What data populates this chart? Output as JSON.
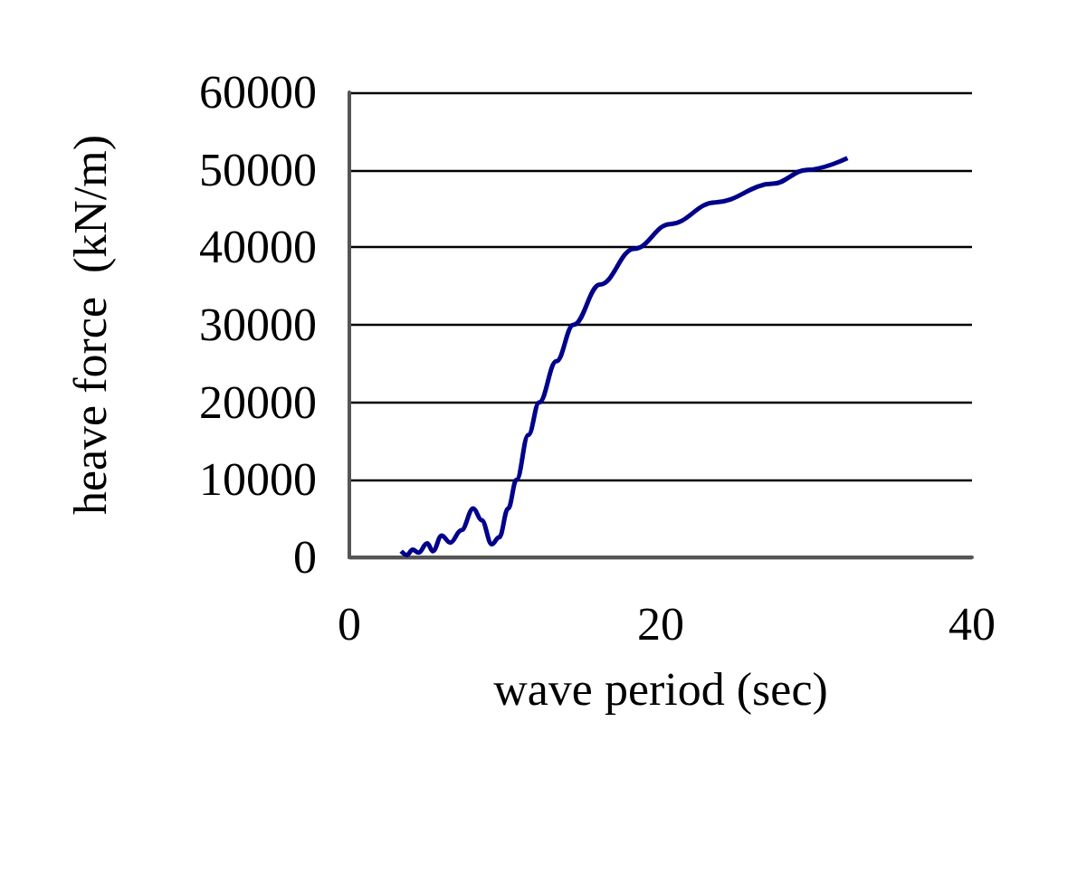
{
  "chart_data": {
    "type": "line",
    "xlabel": "wave period (sec)",
    "ylabel": "heave force  (kN/m)",
    "x": [
      3.33,
      3.7,
      4.07,
      4.44,
      5.0,
      5.37,
      5.93,
      6.48,
      7.2,
      7.96,
      8.5,
      9.15,
      9.63,
      10.2,
      10.74,
      11.5,
      12.2,
      13.3,
      14.4,
      16.1,
      18.3,
      20.6,
      23.5,
      27.2,
      29.4,
      32.0
    ],
    "series": [
      {
        "color": "#00008b",
        "values": [
          800,
          300,
          1000,
          600,
          1800,
          800,
          2800,
          1900,
          3500,
          6300,
          4800,
          1700,
          2600,
          6300,
          10000,
          15800,
          20000,
          25300,
          30000,
          35200,
          39800,
          43000,
          45800,
          48200,
          50000,
          51500
        ]
      }
    ],
    "xlim": [
      0,
      40
    ],
    "xticks": [
      0,
      20,
      40
    ],
    "ylim": [
      0,
      60000
    ],
    "yticks": [
      0,
      10000,
      20000,
      30000,
      40000,
      50000,
      60000
    ],
    "grid": "y",
    "marker": "none",
    "line_style": "solid"
  }
}
